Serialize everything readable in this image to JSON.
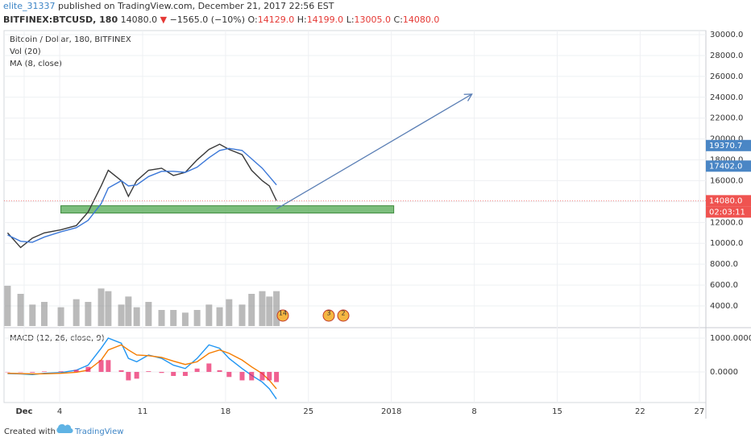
{
  "header": {
    "author": "elite_31337",
    "published": "published on TradingView.com, December 21, 2017 22:56 EST",
    "symbol": "BITFINEX:BTCUSD, 180",
    "last": "14080.0",
    "arrow": "▼",
    "change": "−1565.0 (−10%)",
    "o_label": "O:",
    "o": "14129.0",
    "h_label": "H:",
    "h": "14199.0",
    "l_label": "L:",
    "l": "13005.0",
    "c_label": "C:",
    "c": "14080.0"
  },
  "chart_data": [
    {
      "type": "line",
      "title": "Bitcoin / Dollar, 180, BITFINEX",
      "indicators": [
        "Vol (20)",
        "MA (8, close)"
      ],
      "x": [
        -0.4,
        0.7,
        1.7,
        2.7,
        4.1,
        5.4,
        6.4,
        7.5,
        8.1,
        9.2,
        9.8,
        10.5,
        11.5,
        12.6,
        13.6,
        14.6,
        15.6,
        16.6,
        17.5,
        18.3,
        19.4,
        20.2,
        21.1,
        21.7,
        22.3
      ],
      "series": [
        {
          "name": "Close",
          "color": "#3a3a3a",
          "values": [
            11000,
            9600,
            10500,
            11000,
            11300,
            11700,
            13000,
            15500,
            17000,
            16000,
            14500,
            16000,
            17000,
            17200,
            16500,
            16800,
            18000,
            19000,
            19500,
            19000,
            18500,
            17000,
            16000,
            15500,
            14080
          ]
        },
        {
          "name": "MA (8, close)",
          "color": "#3c78d8",
          "values": [
            10800,
            10200,
            10100,
            10600,
            11100,
            11500,
            12200,
            13800,
            15300,
            16000,
            15500,
            15600,
            16400,
            16900,
            16900,
            16800,
            17300,
            18200,
            18900,
            19100,
            18900,
            18100,
            17200,
            16400,
            15600
          ]
        }
      ],
      "volume": {
        "color": "#8c8c8c",
        "values": [
          15000,
          12000,
          8000,
          9000,
          7000,
          10000,
          9000,
          14000,
          13000,
          8000,
          11000,
          7000,
          9000,
          6000,
          6000,
          5000,
          6000,
          8000,
          7000,
          10000,
          8000,
          12000,
          13000,
          11000,
          13000
        ],
        "vlim": [
          0,
          30000
        ]
      },
      "xlim": [
        -0.7,
        58.55
      ],
      "ylim": [
        2070,
        30390
      ],
      "yticks": [
        {
          "value": 4000,
          "label": "4000.0"
        },
        {
          "value": 6000,
          "label": "6000.0"
        },
        {
          "value": 8000,
          "label": "8000.0"
        },
        {
          "value": 10000,
          "label": "10000.0"
        },
        {
          "value": 12000,
          "label": "12000.0"
        },
        {
          "value": 14000,
          "label": "14000.0"
        },
        {
          "value": 16000,
          "label": "16000.0"
        },
        {
          "value": 18000,
          "label": "18000.0"
        },
        {
          "value": 20000,
          "label": "20000.0"
        },
        {
          "value": 22000,
          "label": "22000.0"
        },
        {
          "value": 24000,
          "label": "24000.0"
        },
        {
          "value": 26000,
          "label": "26000.0"
        },
        {
          "value": 28000,
          "label": "28000.0"
        },
        {
          "value": 30000,
          "label": "30000.0"
        }
      ],
      "price_labels": [
        {
          "value": 19370.7,
          "label": "19370.7",
          "color": "#4a86c5"
        },
        {
          "value": 17402,
          "label": "17402.0",
          "color": "#4a86c5"
        },
        {
          "value": 14080,
          "label": "14080.0",
          "color": "#ef5350"
        }
      ],
      "countdown": "02:03:11",
      "zone": {
        "x": [
          4.1,
          32.2
        ],
        "y": [
          12900,
          13600
        ],
        "color": "#5cae5c"
      },
      "arrow": {
        "x": [
          22.3,
          38.8
        ],
        "y": [
          13300,
          24300
        ],
        "color": "#5b7fb5"
      },
      "events": [
        "14",
        "3",
        "2"
      ]
    },
    {
      "type": "line",
      "title": "MACD (12, 26, close, 9)",
      "ylim": [
        -906,
        1238
      ],
      "yticks": [
        {
          "value": 1000,
          "label": "1000.0000"
        },
        {
          "value": 0,
          "label": "0.0000"
        }
      ],
      "series": [
        {
          "name": "MACD",
          "color": "#2196f3",
          "values": [
            -50,
            -60,
            -80,
            -40,
            -20,
            50,
            200,
            700,
            1000,
            850,
            400,
            300,
            500,
            400,
            200,
            100,
            400,
            800,
            700,
            400,
            100,
            -100,
            -300,
            -500,
            -800
          ]
        },
        {
          "name": "Signal",
          "color": "#f57c00",
          "values": [
            -40,
            -50,
            -60,
            -55,
            -40,
            -10,
            50,
            350,
            650,
            800,
            650,
            500,
            480,
            430,
            320,
            220,
            300,
            550,
            650,
            550,
            350,
            150,
            -50,
            -250,
            -500
          ]
        },
        {
          "name": "Histogram",
          "type": "bar",
          "color": "#e91e63",
          "values": [
            -10,
            -10,
            -20,
            15,
            20,
            60,
            150,
            350,
            350,
            50,
            -250,
            -200,
            20,
            -30,
            -120,
            -120,
            100,
            250,
            50,
            -150,
            -250,
            -250,
            -250,
            -250,
            -300
          ]
        }
      ],
      "xticks": [
        {
          "value": 1,
          "label": "Dec"
        },
        4,
        11,
        18,
        25,
        {
          "value": 32,
          "label": "2018"
        },
        {
          "value": 39,
          "label": "8"
        },
        {
          "value": 46,
          "label": "15"
        },
        {
          "value": 53,
          "label": "22"
        },
        {
          "value": 58,
          "label": "27"
        }
      ]
    }
  ],
  "footer": {
    "created": "Created with",
    "brand": "TradingView"
  }
}
